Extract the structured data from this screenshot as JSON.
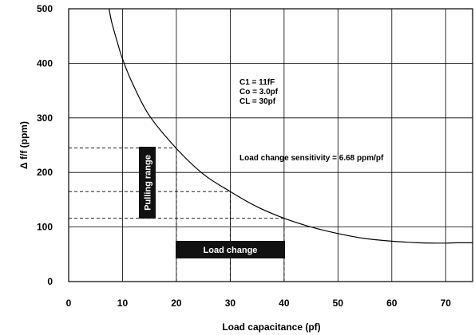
{
  "chart_data": {
    "type": "line",
    "title": "",
    "xlabel": "Load capacitance (pf)",
    "ylabel": "Δ f/f (ppm)",
    "xlim": [
      0,
      75
    ],
    "ylim": [
      0,
      500
    ],
    "x_ticks": [
      0,
      10,
      20,
      30,
      40,
      50,
      60,
      70
    ],
    "y_ticks": [
      0,
      100,
      200,
      300,
      400,
      500
    ],
    "grid": true,
    "series": [
      {
        "x": [
          7.5,
          8,
          9,
          10,
          12,
          15,
          20,
          25,
          30,
          35,
          40,
          45,
          50,
          55,
          60,
          65,
          68,
          70,
          72,
          75
        ],
        "y": [
          500,
          475,
          440,
          408,
          360,
          304,
          244,
          197,
          165,
          137,
          116,
          100,
          88,
          79,
          74,
          71,
          70.5,
          70.5,
          71,
          71
        ]
      }
    ],
    "reference_lines": [
      {
        "style": "dashed",
        "y": 245,
        "x_from": 0,
        "x_to": 20
      },
      {
        "style": "dashed",
        "y": 165,
        "x_from": 0,
        "x_to": 30
      },
      {
        "style": "dashed",
        "y": 116,
        "x_from": 0,
        "x_to": 40
      },
      {
        "style": "dashed",
        "x": 20,
        "y_from": 0,
        "y_to": 245
      },
      {
        "style": "dashed",
        "x": 30,
        "y_from": 0,
        "y_to": 165
      },
      {
        "style": "dashed",
        "x": 40,
        "y_from": 0,
        "y_to": 116
      }
    ],
    "annotations": {
      "params": [
        "C1 = 11fF",
        "Co = 3.0pf",
        "CL = 30pf"
      ],
      "sensitivity": "Load change sensitivity = 6.68 ppm/pf",
      "pulling_range": "Pulling range",
      "load_change": "Load change"
    }
  }
}
